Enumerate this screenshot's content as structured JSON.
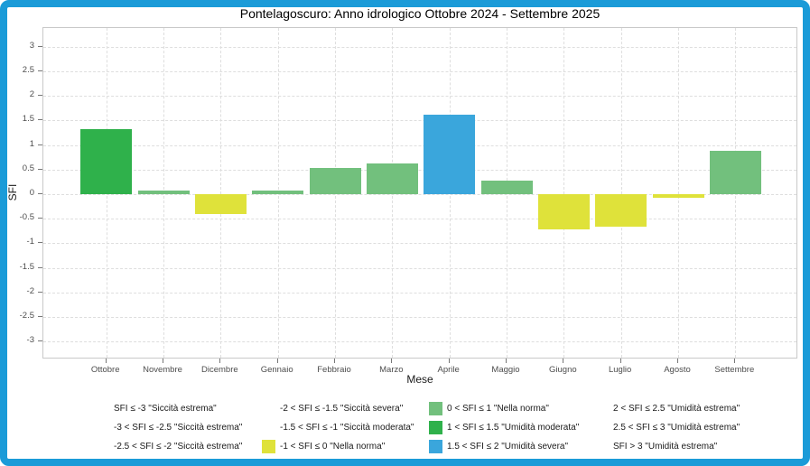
{
  "window": {
    "border_color": "#1b9bd8",
    "background": "#ffffff"
  },
  "chart_data": {
    "type": "bar",
    "title": "Pontelagoscuro: Anno idrologico Ottobre 2024 - Settembre 2025",
    "xlabel": "Mese",
    "ylabel": "SFI",
    "ylim": [
      -3.36,
      3.38
    ],
    "y_tick_min": -3,
    "y_tick_max": 3,
    "y_tick_step": 0.5,
    "grid": "dashed-major",
    "legend_position": "bottom",
    "categories": [
      "Ottobre",
      "Novembre",
      "Dicembre",
      "Gennaio",
      "Febbraio",
      "Marzo",
      "Aprile",
      "Maggio",
      "Giugno",
      "Luglio",
      "Agosto",
      "Settembre"
    ],
    "values": [
      1.33,
      0.07,
      -0.4,
      0.08,
      0.53,
      0.63,
      1.62,
      0.28,
      -0.72,
      -0.66,
      -0.08,
      0.88
    ],
    "bar_color_keys": [
      "umidita_moderata",
      "nella_norma_pos",
      "nella_norma_neg",
      "nella_norma_pos",
      "nella_norma_pos",
      "nella_norma_pos",
      "umidita_severa",
      "nella_norma_pos",
      "nella_norma_neg",
      "nella_norma_neg",
      "nella_norma_neg",
      "nella_norma_pos"
    ]
  },
  "palette": {
    "umidita_moderata": "#2fb14b",
    "nella_norma_pos": "#72c07d",
    "nella_norma_neg": "#dfe23a",
    "umidita_severa": "#3aa6dc"
  },
  "legend": {
    "columns": [
      {
        "items": [
          {
            "swatch": null,
            "label": "SFI ≤ -3 \"Siccità estrema\""
          },
          {
            "swatch": null,
            "label": "-3 < SFI ≤ -2.5 \"Siccità estrema\""
          },
          {
            "swatch": null,
            "label": "-2.5 < SFI ≤ -2 \"Siccità estrema\""
          }
        ]
      },
      {
        "items": [
          {
            "swatch": null,
            "label": "-2 < SFI ≤ -1.5 \"Siccità severa\""
          },
          {
            "swatch": null,
            "label": "-1.5 < SFI ≤ -1 \"Siccità moderata\""
          },
          {
            "swatch": "nella_norma_neg",
            "label": "-1 < SFI ≤ 0 \"Nella norma\""
          }
        ]
      },
      {
        "items": [
          {
            "swatch": "nella_norma_pos",
            "label": "0 < SFI ≤ 1 \"Nella norma\""
          },
          {
            "swatch": "umidita_moderata",
            "label": "1 < SFI ≤ 1.5 \"Umidità moderata\""
          },
          {
            "swatch": "umidita_severa",
            "label": "1.5 < SFI ≤ 2 \"Umidità severa\""
          }
        ]
      },
      {
        "items": [
          {
            "swatch": null,
            "label": "2 < SFI ≤ 2.5 \"Umidità estrema\""
          },
          {
            "swatch": null,
            "label": "2.5 < SFI ≤ 3 \"Umidità estrema\""
          },
          {
            "swatch": null,
            "label": "SFI > 3 \"Umidità estrema\""
          }
        ]
      }
    ]
  }
}
